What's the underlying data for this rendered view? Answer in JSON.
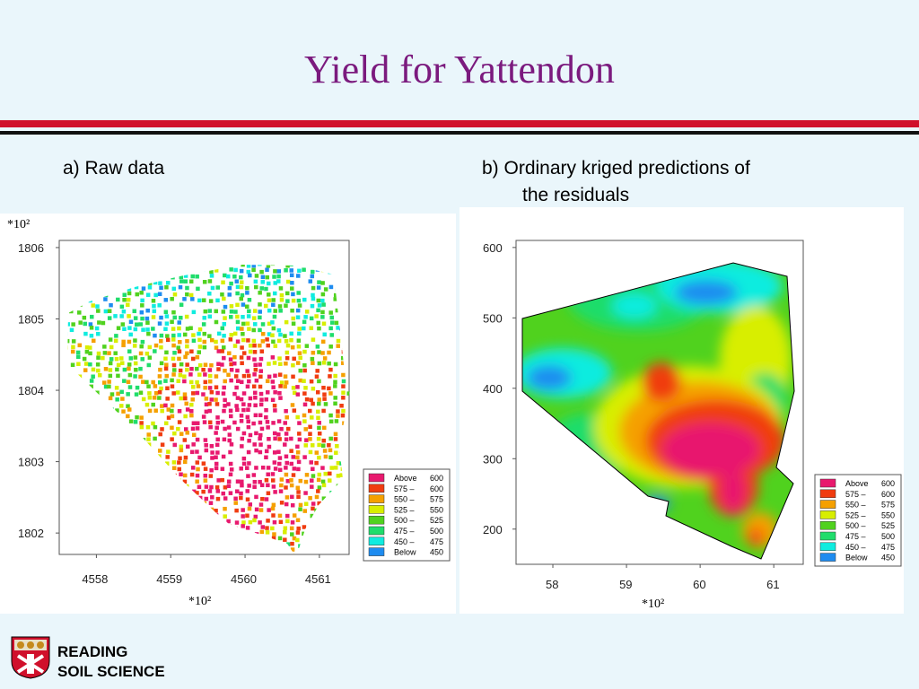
{
  "slide": {
    "title": "Yield for Yattendon",
    "caption_a": "a) Raw data",
    "caption_b_line1": "b) Ordinary kriged predictions of",
    "caption_b_line2": "the residuals"
  },
  "colors": {
    "title": "#7b1a7e",
    "bands": [
      "#e8196e",
      "#f03c10",
      "#f5a000",
      "#d8ee00",
      "#50d21e",
      "#1fdd6b",
      "#10ecdf",
      "#1e8cf0"
    ]
  },
  "legend": [
    {
      "label": "Above",
      "value": "600",
      "color": "#e8196e"
    },
    {
      "label": "575  –",
      "value": "600",
      "color": "#f03c10"
    },
    {
      "label": "550  –",
      "value": "575",
      "color": "#f5a000"
    },
    {
      "label": "525  –",
      "value": "550",
      "color": "#d8ee00"
    },
    {
      "label": "500  –",
      "value": "525",
      "color": "#50d21e"
    },
    {
      "label": "475  –",
      "value": "500",
      "color": "#1fdd6b"
    },
    {
      "label": "450  –",
      "value": "475",
      "color": "#10ecdf"
    },
    {
      "label": "Below",
      "value": "450",
      "color": "#1e8cf0"
    }
  ],
  "chart_a": {
    "y_ticks": [
      "1806",
      "1805",
      "1804",
      "1803",
      "1802"
    ],
    "x_ticks": [
      "4558",
      "4559",
      "4560",
      "4561"
    ],
    "y_multiplier": "*10²",
    "x_multiplier": "*10²"
  },
  "chart_b": {
    "y_ticks": [
      "600",
      "500",
      "400",
      "300",
      "200"
    ],
    "x_ticks": [
      "58",
      "59",
      "60",
      "61"
    ],
    "x_multiplier": "*10²"
  },
  "chart_data": [
    {
      "type": "scatter",
      "title": "a) Raw data",
      "xlim": [
        455750,
        456140
      ],
      "ylim": [
        180170,
        180610
      ],
      "x_ticks": [
        455800,
        455900,
        456000,
        456100
      ],
      "y_ticks": [
        180200,
        180300,
        180400,
        180500,
        180600
      ]
    },
    {
      "type": "heatmap",
      "title": "b) Ordinary kriged predictions of the residuals",
      "xlim": [
        5750,
        6140
      ],
      "ylim": [
        150,
        610
      ],
      "x_ticks": [
        5800,
        5900,
        6000,
        6100
      ],
      "y_ticks": [
        200,
        300,
        400,
        500,
        600
      ]
    }
  ],
  "logo": {
    "line1": "READING",
    "line2": "SOIL SCIENCE"
  }
}
